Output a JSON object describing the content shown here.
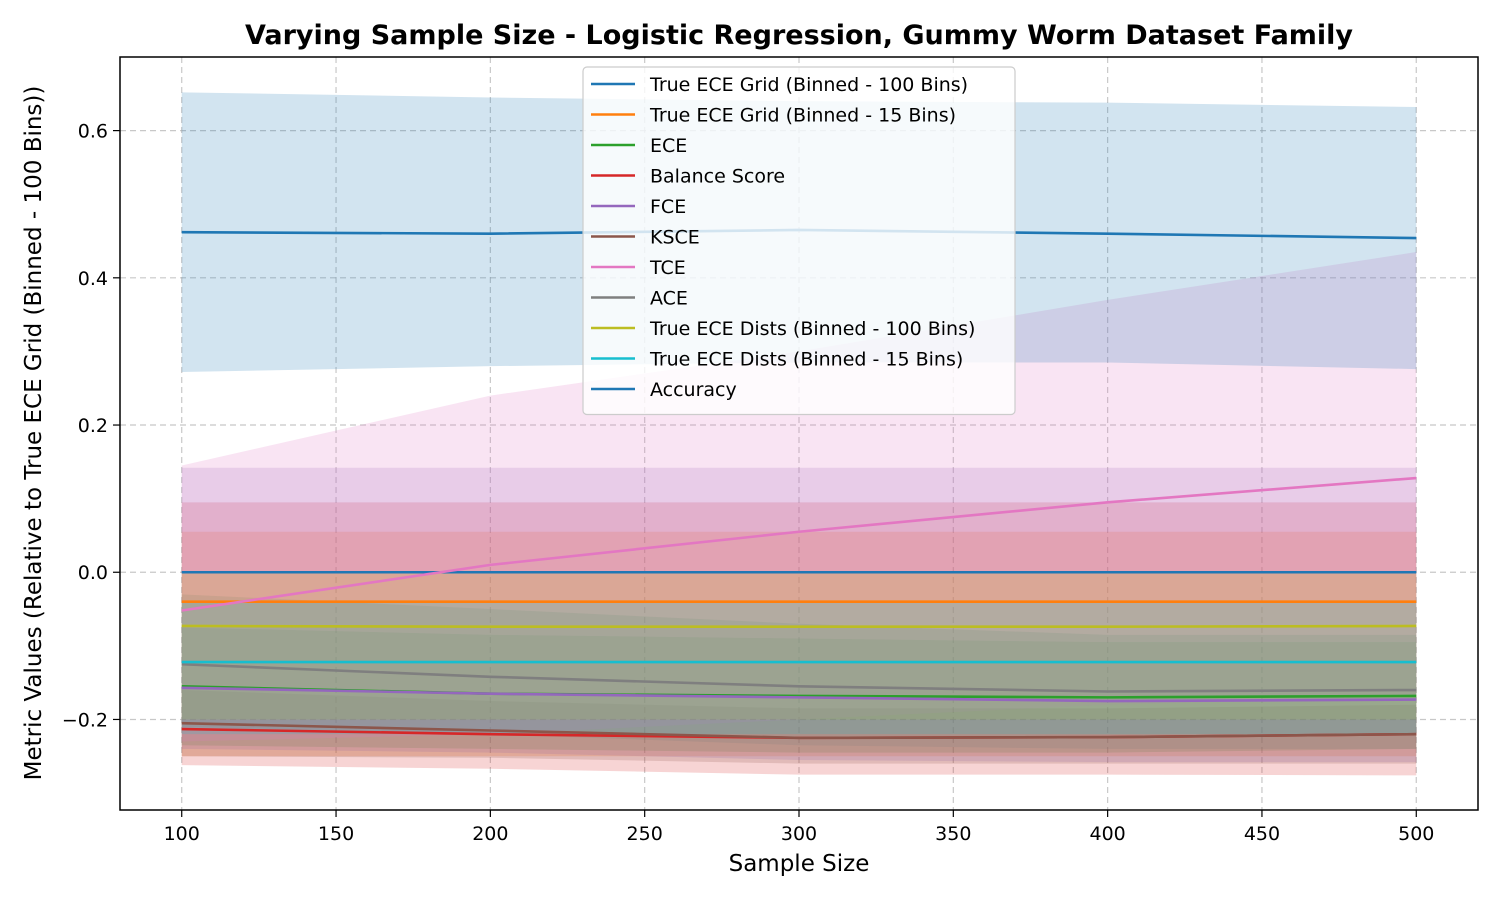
{
  "chart_data": {
    "type": "line",
    "title": "Varying Sample Size - Logistic Regression, Gummy Worm Dataset Family",
    "xlabel": "Sample Size",
    "ylabel": "Metric Values (Relative to True ECE Grid (Binned - 100 Bins))",
    "xlim": [
      80,
      520
    ],
    "ylim": [
      -0.323,
      0.7
    ],
    "xticks": [
      100,
      150,
      200,
      250,
      300,
      350,
      400,
      450,
      500
    ],
    "yticks": [
      -0.2,
      0.0,
      0.2,
      0.4,
      0.6
    ],
    "ytick_labels": [
      "−0.2",
      "0.0",
      "0.2",
      "0.4",
      "0.6"
    ],
    "grid": true,
    "legend_position": "top-center",
    "x": [
      100,
      200,
      300,
      400,
      500
    ],
    "series": [
      {
        "name": "True ECE Grid (Binned - 100 Bins)",
        "color": "#1f77b4",
        "values": [
          0.0,
          0.0,
          0.0,
          0.0,
          0.0
        ],
        "band_lower": [
          0.0,
          0.0,
          0.0,
          0.0,
          0.0
        ],
        "band_upper": [
          0.0,
          0.0,
          0.0,
          0.0,
          0.0
        ]
      },
      {
        "name": "True ECE Grid (Binned - 15 Bins)",
        "color": "#ff7f0e",
        "values": [
          -0.04,
          -0.04,
          -0.04,
          -0.04,
          -0.04
        ],
        "band_lower": [
          -0.25,
          -0.25,
          -0.25,
          -0.25,
          -0.25
        ],
        "band_upper": [
          0.055,
          0.055,
          0.055,
          0.055,
          0.055
        ]
      },
      {
        "name": "ECE",
        "color": "#2ca02c",
        "values": [
          -0.155,
          -0.165,
          -0.168,
          -0.17,
          -0.168
        ],
        "band_lower": [
          -0.235,
          -0.24,
          -0.245,
          -0.245,
          -0.24
        ],
        "band_upper": [
          -0.075,
          -0.085,
          -0.09,
          -0.095,
          -0.095
        ]
      },
      {
        "name": "Balance Score",
        "color": "#d62728",
        "values": [
          -0.213,
          -0.22,
          -0.225,
          -0.224,
          -0.22
        ],
        "band_lower": [
          -0.262,
          -0.267,
          -0.275,
          -0.275,
          -0.276
        ],
        "band_upper": [
          0.095,
          0.095,
          0.095,
          0.095,
          0.095
        ]
      },
      {
        "name": "FCE",
        "color": "#9467bd",
        "values": [
          -0.157,
          -0.165,
          -0.17,
          -0.175,
          -0.173
        ],
        "band_lower": [
          -0.24,
          -0.245,
          -0.255,
          -0.258,
          -0.258
        ],
        "band_upper": [
          0.142,
          0.142,
          0.142,
          0.142,
          0.142
        ]
      },
      {
        "name": "KSCE",
        "color": "#8c564b",
        "values": [
          -0.205,
          -0.215,
          -0.225,
          -0.224,
          -0.22
        ],
        "band_lower": [
          -0.25,
          -0.252,
          -0.26,
          -0.26,
          -0.26
        ],
        "band_upper": [
          -0.16,
          -0.175,
          -0.185,
          -0.185,
          -0.18
        ]
      },
      {
        "name": "TCE",
        "color": "#e377c2",
        "values": [
          -0.052,
          0.01,
          0.055,
          0.095,
          0.128
        ],
        "band_lower": [
          -0.23,
          -0.22,
          -0.2,
          -0.18,
          -0.17
        ],
        "band_upper": [
          0.145,
          0.24,
          0.3,
          0.37,
          0.435
        ]
      },
      {
        "name": "ACE",
        "color": "#7f7f7f",
        "values": [
          -0.125,
          -0.142,
          -0.155,
          -0.162,
          -0.16
        ],
        "band_lower": [
          -0.21,
          -0.22,
          -0.235,
          -0.24,
          -0.24
        ],
        "band_upper": [
          -0.03,
          -0.05,
          -0.07,
          -0.085,
          -0.085
        ]
      },
      {
        "name": "True ECE Dists (Binned - 100 Bins)",
        "color": "#bcbd22",
        "values": [
          -0.073,
          -0.074,
          -0.074,
          -0.074,
          -0.073
        ],
        "band_lower": [
          -0.2,
          -0.2,
          -0.2,
          -0.2,
          -0.2
        ],
        "band_upper": [
          0.0,
          0.0,
          0.0,
          0.0,
          0.0
        ]
      },
      {
        "name": "True ECE Dists (Binned - 15 Bins)",
        "color": "#17becf",
        "values": [
          -0.122,
          -0.122,
          -0.122,
          -0.122,
          -0.122
        ],
        "band_lower": [
          -0.22,
          -0.22,
          -0.22,
          -0.22,
          -0.22
        ],
        "band_upper": [
          -0.04,
          -0.04,
          -0.04,
          -0.04,
          -0.04
        ]
      },
      {
        "name": "Accuracy",
        "color": "#1f77b4",
        "values": [
          0.462,
          0.46,
          0.465,
          0.46,
          0.454
        ],
        "band_lower": [
          0.272,
          0.28,
          0.285,
          0.285,
          0.276
        ],
        "band_upper": [
          0.652,
          0.645,
          0.64,
          0.638,
          0.632
        ]
      }
    ]
  }
}
